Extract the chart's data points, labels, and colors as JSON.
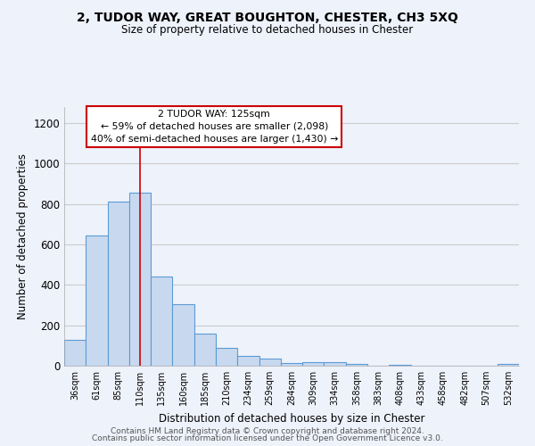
{
  "title_line1": "2, TUDOR WAY, GREAT BOUGHTON, CHESTER, CH3 5XQ",
  "title_line2": "Size of property relative to detached houses in Chester",
  "xlabel": "Distribution of detached houses by size in Chester",
  "ylabel": "Number of detached properties",
  "categories": [
    "36sqm",
    "61sqm",
    "85sqm",
    "110sqm",
    "135sqm",
    "160sqm",
    "185sqm",
    "210sqm",
    "234sqm",
    "259sqm",
    "284sqm",
    "309sqm",
    "334sqm",
    "358sqm",
    "383sqm",
    "408sqm",
    "433sqm",
    "458sqm",
    "482sqm",
    "507sqm",
    "532sqm"
  ],
  "values": [
    130,
    645,
    810,
    858,
    443,
    305,
    158,
    90,
    50,
    37,
    13,
    18,
    18,
    10,
    0,
    3,
    0,
    0,
    0,
    0,
    10
  ],
  "bar_color": "#c8d9ef",
  "bar_edgecolor": "#5b9bd5",
  "vline_x_index": 3,
  "vline_color": "#cc0000",
  "annotation_line1": "2 TUDOR WAY: 125sqm",
  "annotation_line2": "← 59% of detached houses are smaller (2,098)",
  "annotation_line3": "40% of semi-detached houses are larger (1,430) →",
  "annotation_box_facecolor": "#ffffff",
  "annotation_box_edgecolor": "#cc0000",
  "ylim": [
    0,
    1280
  ],
  "yticks": [
    0,
    200,
    400,
    600,
    800,
    1000,
    1200
  ],
  "grid_color": "#cccccc",
  "background_color": "#eef2fb",
  "footer_line1": "Contains HM Land Registry data © Crown copyright and database right 2024.",
  "footer_line2": "Contains public sector information licensed under the Open Government Licence v3.0."
}
